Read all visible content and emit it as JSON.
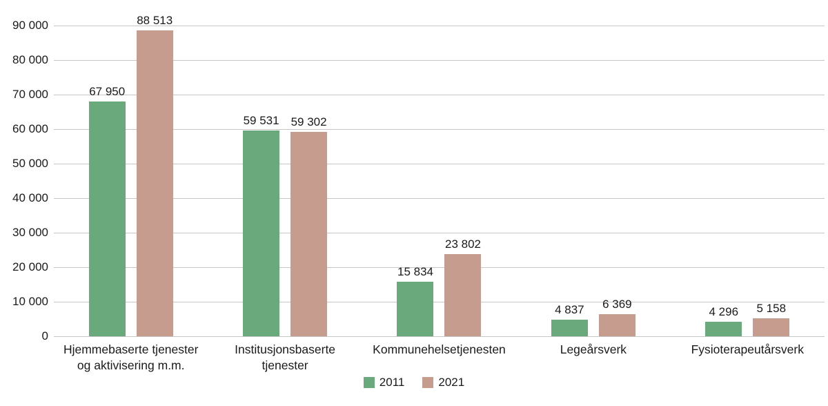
{
  "chart_data": {
    "type": "bar",
    "title": "",
    "xlabel": "",
    "ylabel": "",
    "categories": [
      "Hjemmebaserte tjenester\nog aktivisering m.m.",
      "Institusjonsbaserte\ntjenester",
      "Kommunehelsetjenesten",
      "Legeårsverk",
      "Fysioterapeutårsverk"
    ],
    "series": [
      {
        "name": "2011",
        "color": "#69a97c",
        "values": [
          67950,
          59531,
          15834,
          4837,
          4296
        ]
      },
      {
        "name": "2021",
        "color": "#c59c8d",
        "values": [
          88513,
          59302,
          23802,
          6369,
          5158
        ]
      }
    ],
    "value_labels": [
      [
        "67 950",
        "59 531",
        "15 834",
        "4 837",
        "4 296"
      ],
      [
        "88 513",
        "59 302",
        "23 802",
        "6 369",
        "5 158"
      ]
    ],
    "ylim": [
      0,
      90000
    ],
    "ytick_interval": 10000,
    "ytick_labels": [
      "0",
      "10 000",
      "20 000",
      "30 000",
      "40 000",
      "50 000",
      "60 000",
      "70 000",
      "80 000",
      "90 000"
    ],
    "grid": true,
    "grid_color": "#c6c6c6",
    "legend_position": "bottom-center",
    "background": "#ffffff"
  }
}
